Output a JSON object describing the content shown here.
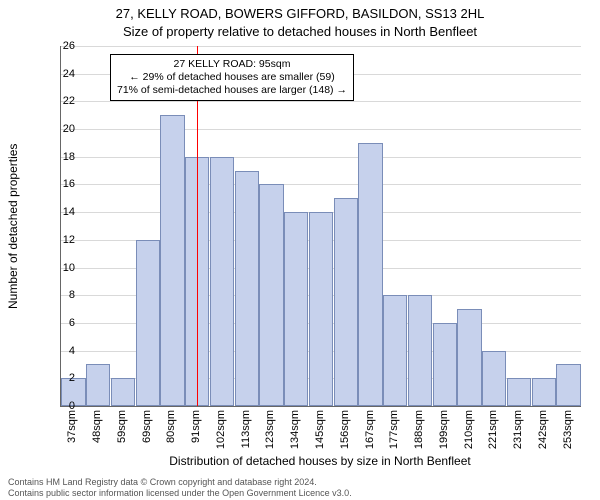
{
  "title_line1": "27, KELLY ROAD, BOWERS GIFFORD, BASILDON, SS13 2HL",
  "title_line2": "Size of property relative to detached houses in North Benfleet",
  "ylabel": "Number of detached properties",
  "xlabel": "Distribution of detached houses by size in North Benfleet",
  "footer_line1": "Contains HM Land Registry data © Crown copyright and database right 2024.",
  "footer_line2": "Contains public sector information licensed under the Open Government Licence v3.0.",
  "chart": {
    "type": "histogram",
    "ylim": [
      0,
      26
    ],
    "ytick_step": 2,
    "background_color": "#ffffff",
    "grid_color": "#666666",
    "bar_fill": "#c6d1ec",
    "bar_border": "#7a8db8",
    "x_categories": [
      "37sqm",
      "48sqm",
      "59sqm",
      "69sqm",
      "80sqm",
      "91sqm",
      "102sqm",
      "113sqm",
      "123sqm",
      "134sqm",
      "145sqm",
      "156sqm",
      "167sqm",
      "177sqm",
      "188sqm",
      "199sqm",
      "210sqm",
      "221sqm",
      "231sqm",
      "242sqm",
      "253sqm"
    ],
    "values": [
      2,
      3,
      2,
      12,
      21,
      18,
      18,
      17,
      16,
      14,
      14,
      15,
      19,
      8,
      8,
      6,
      7,
      4,
      2,
      2,
      3
    ],
    "reference_line": {
      "index_position": 5.5,
      "color": "#ff0000"
    },
    "annotation": {
      "lines": [
        "27 KELLY ROAD: 95sqm",
        "← 29% of detached houses are smaller (59)",
        "71% of semi-detached houses are larger (148) →"
      ],
      "border_color": "#000000",
      "background": "#ffffff",
      "fontsize": 10.5
    }
  }
}
